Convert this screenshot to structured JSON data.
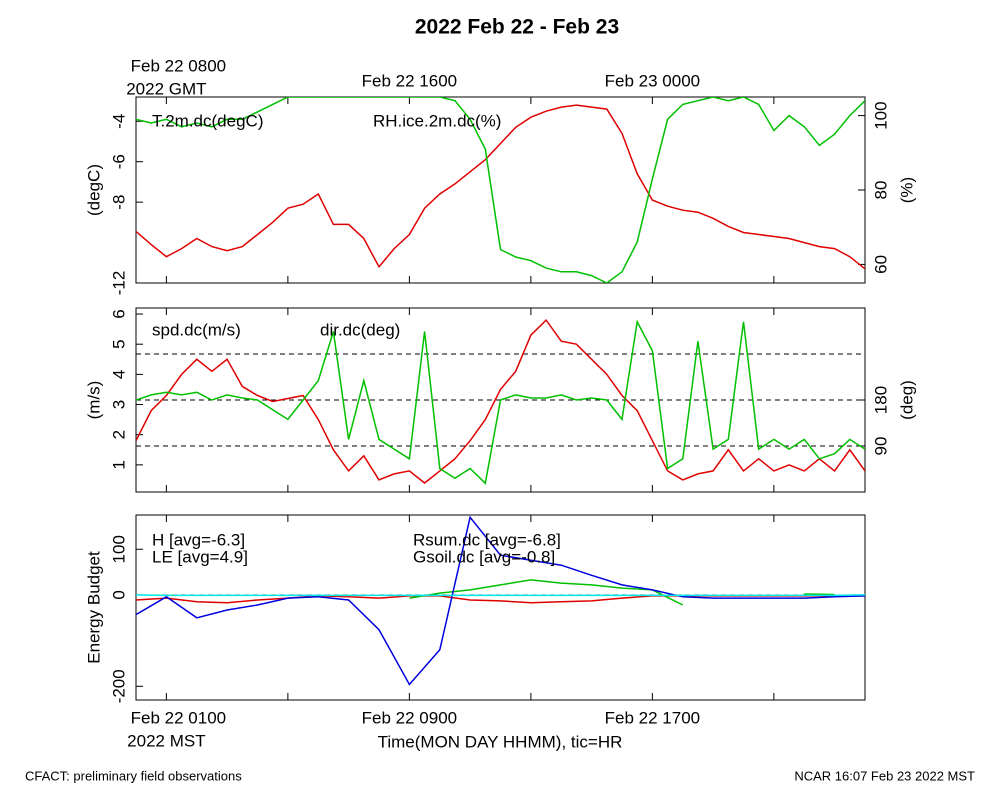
{
  "title": "2022 Feb 22 - Feb 23",
  "footer_left": "CFACT: preliminary field observations",
  "footer_right": "NCAR 16:07 Feb 23 2022 MST",
  "chart_data": [
    {
      "type": "line",
      "ylabel": "(degC)",
      "y2label": "(%)",
      "x2ticks": [
        {
          "value": 1,
          "label": "Feb 22 0800"
        },
        {
          "value": 9,
          "label": "Feb 22 1600"
        },
        {
          "value": 17,
          "label": "Feb 23 0000"
        }
      ],
      "x2_year_label": "2022 GMT",
      "xlim": [
        0,
        24
      ],
      "ylim": [
        -12,
        -2.8
      ],
      "yticks": [
        -12,
        -8,
        -6,
        -4
      ],
      "y2lim": [
        55,
        105
      ],
      "y2ticks": [
        60,
        80,
        100
      ],
      "x": [
        0,
        0.5,
        1,
        1.5,
        2,
        2.5,
        3,
        3.5,
        4,
        4.5,
        5,
        5.5,
        6,
        6.5,
        7,
        7.5,
        8,
        8.5,
        9,
        9.5,
        10,
        10.5,
        11,
        11.5,
        12,
        12.5,
        13,
        13.5,
        14,
        14.5,
        15,
        15.5,
        16,
        16.5,
        17,
        17.5,
        18,
        18.5,
        19,
        19.5,
        20,
        20.5,
        21,
        21.5,
        22,
        22.5,
        23,
        23.5,
        24
      ],
      "series": [
        {
          "name": "T.2m.dc(degC)",
          "color": "#e00000",
          "values": [
            -9.45,
            -10.1,
            -10.7,
            -10.3,
            -9.8,
            -10.2,
            -10.4,
            -10.2,
            -9.6,
            -9.0,
            -8.3,
            -8.1,
            -7.6,
            -9.1,
            -9.1,
            -9.8,
            -11.2,
            -10.3,
            -9.6,
            -8.3,
            -7.6,
            -7.1,
            -6.5,
            -5.9,
            -5.1,
            -4.3,
            -3.8,
            -3.5,
            -3.3,
            -3.2,
            -3.3,
            -3.4,
            -4.6,
            -6.6,
            -7.9,
            -8.2,
            -8.4,
            -8.5,
            -8.8,
            -9.2,
            -9.5,
            -9.6,
            -9.7,
            -9.8,
            -10.0,
            -10.2,
            -10.3,
            -10.7,
            -11.3
          ]
        },
        {
          "name": "RH.ice.2m.dc(%)",
          "color": "#00c000",
          "axis": "y2",
          "values": [
            99,
            98,
            99,
            97,
            98,
            97,
            99,
            99,
            101,
            103,
            105,
            105,
            105,
            105,
            105,
            105,
            105,
            105,
            105,
            105,
            105,
            104,
            99,
            91,
            64,
            62,
            61,
            59,
            58,
            58,
            57,
            55,
            58,
            66,
            83,
            99,
            103,
            104,
            105,
            104,
            105,
            103,
            96,
            100,
            97,
            92,
            95,
            100,
            104
          ]
        }
      ]
    },
    {
      "type": "line",
      "ylabel": "(m/s)",
      "y2label": "(deg)",
      "xlim": [
        0,
        24
      ],
      "ylim": [
        0.1,
        6.2
      ],
      "yticks": [
        1,
        2,
        3,
        4,
        5,
        6
      ],
      "y2lim": [
        0,
        360
      ],
      "y2ticks": [
        90,
        180
      ],
      "y2_dashed_lines": [
        90,
        180,
        270
      ],
      "x": [
        0,
        0.5,
        1,
        1.5,
        2,
        2.5,
        3,
        3.5,
        4,
        4.5,
        5,
        5.5,
        6,
        6.5,
        7,
        7.5,
        8,
        8.5,
        9,
        9.5,
        10,
        10.5,
        11,
        11.5,
        12,
        12.5,
        13,
        13.5,
        14,
        14.5,
        15,
        15.5,
        16,
        16.5,
        17,
        17.5,
        18,
        18.5,
        19,
        19.5,
        20,
        20.5,
        21,
        21.5,
        22,
        22.5,
        23,
        23.5,
        24
      ],
      "series": [
        {
          "name": "spd.dc(m/s)",
          "color": "#e00000",
          "values": [
            1.8,
            2.8,
            3.3,
            4.0,
            4.5,
            4.1,
            4.5,
            3.6,
            3.3,
            3.1,
            3.2,
            3.3,
            2.5,
            1.5,
            0.8,
            1.3,
            0.5,
            0.7,
            0.8,
            0.4,
            0.8,
            1.2,
            1.8,
            2.5,
            3.5,
            4.1,
            5.3,
            5.8,
            5.1,
            5.0,
            4.5,
            4.0,
            3.3,
            2.8,
            1.8,
            0.8,
            0.5,
            0.7,
            0.8,
            1.5,
            0.8,
            1.2,
            0.8,
            1.0,
            0.8,
            1.2,
            0.8,
            1.5,
            0.8
          ]
        },
        {
          "name": "dir.dc(deg)",
          "color": "#00c000",
          "axis": "y2",
          "values": [
            180,
            190,
            195,
            190,
            195,
            180,
            190,
            184,
            180,
            161,
            142,
            180,
            218,
            314,
            103,
            218,
            103,
            84,
            65,
            314,
            46,
            27,
            46,
            17,
            180,
            190,
            184,
            184,
            190,
            180,
            184,
            180,
            142,
            333,
            276,
            46,
            65,
            295,
            84,
            103,
            333,
            84,
            103,
            84,
            103,
            65,
            75,
            103,
            84
          ]
        }
      ]
    },
    {
      "type": "line",
      "ylabel": "Energy Budget",
      "xlim": [
        0,
        24
      ],
      "ylim": [
        -230,
        175
      ],
      "yticks": [
        -200,
        0,
        100
      ],
      "y_dashed_lines": [
        0
      ],
      "xticks": [
        {
          "value": 1,
          "label": "Feb 22 0100"
        },
        {
          "value": 9,
          "label": "Feb 22 0900"
        },
        {
          "value": 17,
          "label": "Feb 22 1700"
        }
      ],
      "xminor": [
        5,
        13,
        21
      ],
      "x_year_label": "2022 MST",
      "xlabel": "Time(MON DAY HHMM), tic=HR",
      "x": [
        0,
        1,
        2,
        3,
        4,
        5,
        6,
        7,
        8,
        9,
        10,
        11,
        12,
        13,
        14,
        15,
        16,
        17,
        18,
        19,
        20,
        21,
        22,
        23,
        24
      ],
      "series": [
        {
          "name": "H [avg=-6.3]",
          "color": "#e00000",
          "values": [
            -11,
            -7,
            -15,
            -17,
            -11,
            -7,
            -2,
            -4,
            -7,
            -2,
            -2,
            -11,
            -13,
            -17,
            -15,
            -13,
            -7,
            -2,
            -2,
            -2,
            -2,
            -2,
            -2,
            -2,
            -2
          ]
        },
        {
          "name": "LE [avg=4.9]",
          "color": "#00c000",
          "values": [
            null,
            null,
            null,
            null,
            null,
            null,
            null,
            null,
            null,
            -7,
            4,
            11,
            22,
            33,
            26,
            22,
            15,
            11,
            -22,
            null,
            null,
            null,
            2,
            1,
            null
          ]
        },
        {
          "name": "Rsum.dc [avg=-6.8]",
          "color": "#0000e0",
          "values": [
            -43,
            -4,
            -50,
            -33,
            -22,
            -7,
            -4,
            -11,
            -76,
            -196,
            -120,
            170,
            87,
            76,
            65,
            43,
            22,
            11,
            -4,
            -7,
            -7,
            -7,
            -7,
            -4,
            -2
          ]
        },
        {
          "name": "Gsoil.dc [avg=-0.8]",
          "color": "#00e8e8",
          "values": [
            0,
            -1,
            -1,
            -1,
            -1,
            -1,
            -1,
            -1,
            -1,
            -1,
            -1,
            -1,
            -1,
            -1,
            -1,
            -1,
            -1,
            -1,
            -1,
            -1,
            -1,
            -1,
            -1,
            -1,
            0
          ]
        }
      ]
    }
  ]
}
